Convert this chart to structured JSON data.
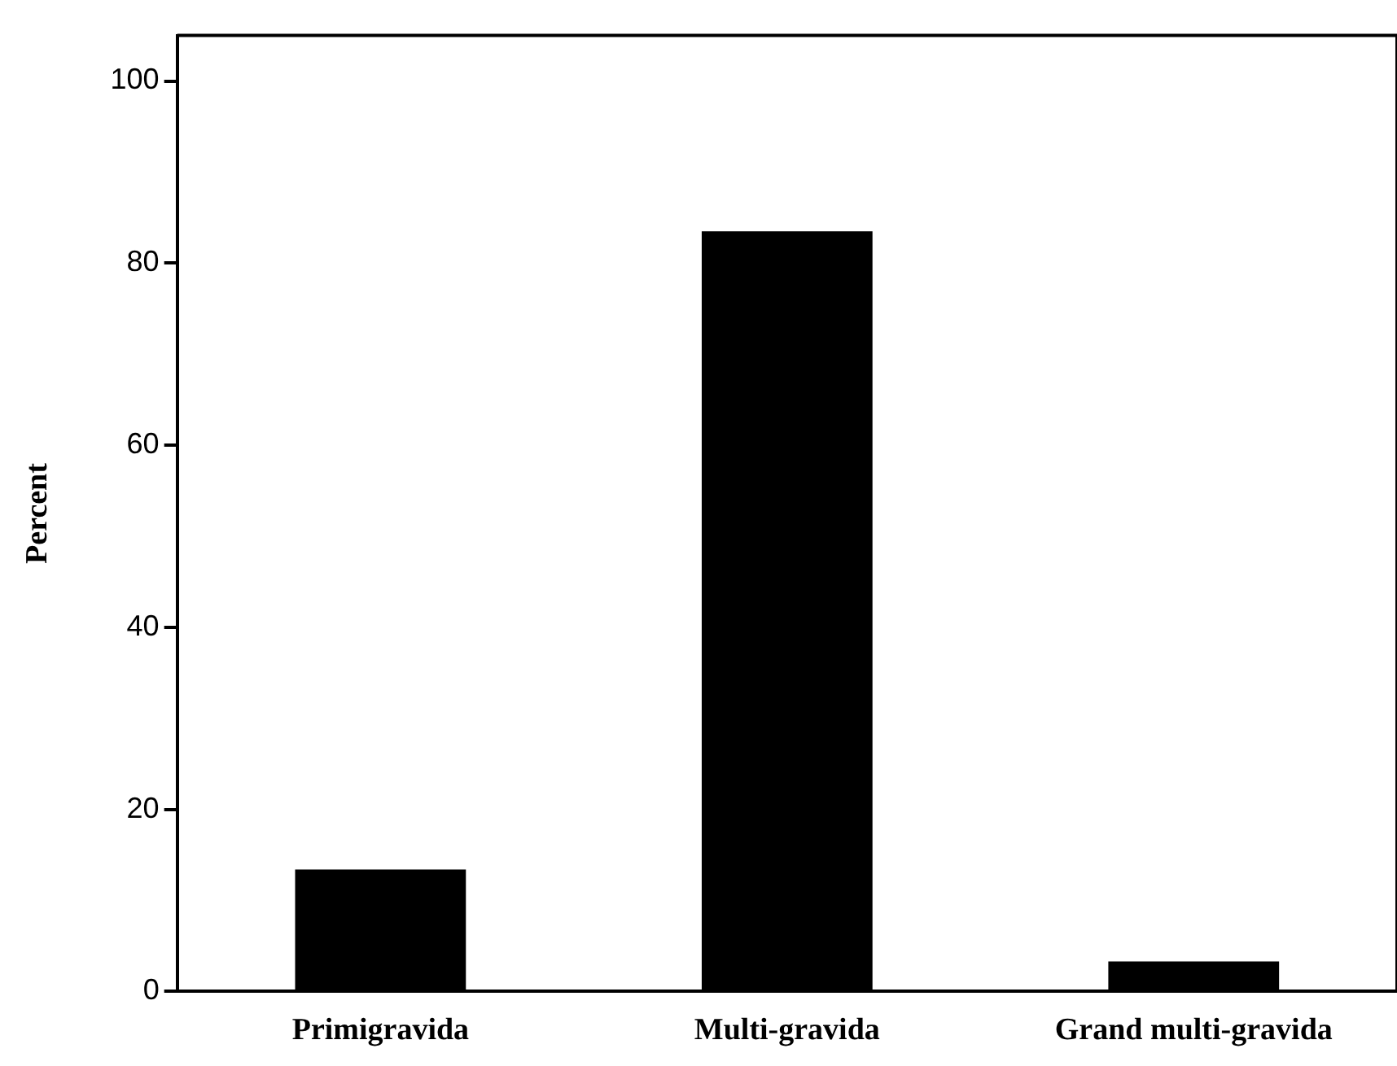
{
  "chart_data": {
    "type": "bar",
    "ylabel": "Percent",
    "categories": [
      "Primigravida",
      "Multi-gravida",
      "Grand multi-gravida"
    ],
    "values": [
      13.4,
      83.5,
      3.3
    ],
    "color": "#000000",
    "ylim": [
      0,
      105
    ],
    "yticks": [
      0,
      20,
      40,
      60,
      80,
      100
    ],
    "grid": false,
    "legend": false
  }
}
